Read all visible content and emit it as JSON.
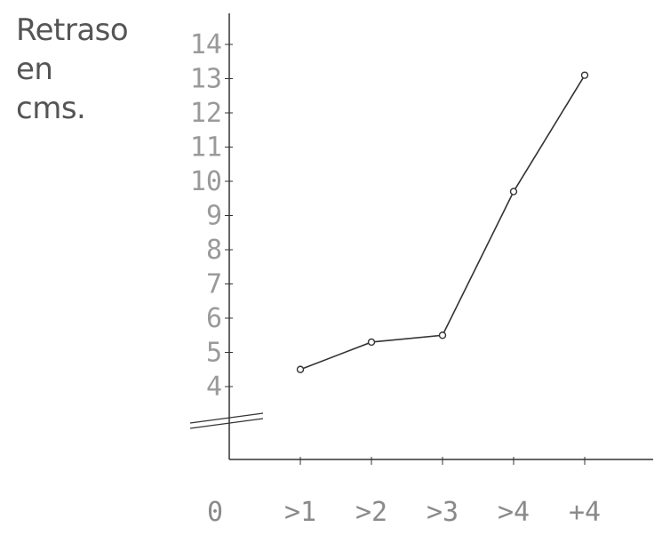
{
  "chart_data": {
    "type": "line",
    "ylabel_lines": [
      "Retraso",
      "en",
      "cms."
    ],
    "xlabel": "",
    "title": "",
    "categories": [
      "0",
      ">1",
      ">2",
      ">3",
      ">4",
      "+4"
    ],
    "series": [
      {
        "x": [
          ">1",
          ">2",
          ">3",
          ">4",
          "+4"
        ],
        "values": [
          4.5,
          5.3,
          5.5,
          9.7,
          13.1
        ]
      }
    ],
    "y_ticks": [
      4,
      5,
      6,
      7,
      8,
      9,
      10,
      11,
      12,
      13,
      14
    ],
    "ylim": [
      1,
      14.5
    ],
    "axis_break": "between 1 and 4",
    "grid": false,
    "legend": "none",
    "colors": {
      "ink": "#333333",
      "tick_text": "#9a9a9a"
    }
  }
}
